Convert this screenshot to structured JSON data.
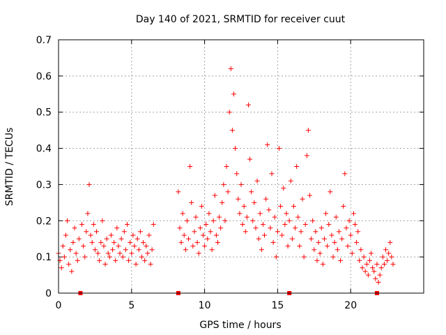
{
  "chart_data": {
    "type": "scatter",
    "title": "Day 140 of 2021, SRMTID for receiver cuut",
    "xlabel": "GPS time / hours",
    "ylabel": "SRMTID / TECUs",
    "xlim": [
      0,
      25
    ],
    "ylim": [
      0,
      0.7
    ],
    "xticks": [
      0,
      5,
      10,
      15,
      20
    ],
    "yticks": [
      0,
      0.1,
      0.2,
      0.3,
      0.4,
      0.5,
      0.6,
      0.7
    ],
    "xtick_labels": [
      "0",
      "5",
      "10",
      "15",
      "20"
    ],
    "ytick_labels": [
      "0",
      "0.1",
      "0.2",
      "0.3",
      "0.4",
      "0.5",
      "0.6",
      "0.7"
    ],
    "grid": true,
    "marker": "+",
    "color": "#ff0000",
    "gap_markers_x": [
      1.5,
      8.2,
      15.8,
      21.8
    ],
    "series": [
      {
        "name": "SRMTID",
        "x": [
          0.0,
          0.1,
          0.2,
          0.3,
          0.4,
          0.5,
          0.6,
          0.7,
          0.8,
          0.9,
          1.0,
          1.1,
          1.2,
          1.3,
          1.4,
          1.6,
          1.7,
          1.8,
          1.9,
          2.0,
          2.1,
          2.2,
          2.3,
          2.4,
          2.5,
          2.6,
          2.7,
          2.8,
          2.9,
          3.0,
          3.1,
          3.2,
          3.3,
          3.4,
          3.5,
          3.6,
          3.7,
          3.8,
          3.9,
          4.0,
          4.1,
          4.2,
          4.3,
          4.4,
          4.5,
          4.6,
          4.7,
          4.8,
          4.9,
          5.0,
          5.1,
          5.2,
          5.3,
          5.4,
          5.5,
          5.6,
          5.7,
          5.8,
          5.9,
          6.0,
          6.1,
          6.2,
          6.3,
          6.4,
          6.5,
          8.2,
          8.3,
          8.4,
          8.5,
          8.6,
          8.7,
          8.8,
          8.9,
          9.0,
          9.1,
          9.2,
          9.3,
          9.4,
          9.5,
          9.6,
          9.7,
          9.8,
          9.9,
          10.0,
          10.1,
          10.2,
          10.3,
          10.4,
          10.5,
          10.6,
          10.7,
          10.8,
          10.9,
          11.0,
          11.1,
          11.2,
          11.3,
          11.4,
          11.5,
          11.6,
          11.7,
          11.8,
          11.9,
          12.0,
          12.1,
          12.2,
          12.3,
          12.4,
          12.5,
          12.6,
          12.7,
          12.8,
          12.9,
          13.0,
          13.1,
          13.2,
          13.3,
          13.4,
          13.5,
          13.6,
          13.7,
          13.8,
          13.9,
          14.0,
          14.1,
          14.2,
          14.3,
          14.4,
          14.5,
          14.6,
          14.7,
          14.8,
          14.9,
          15.0,
          15.1,
          15.2,
          15.3,
          15.4,
          15.5,
          15.6,
          15.7,
          15.8,
          15.9,
          16.0,
          16.1,
          16.2,
          16.3,
          16.4,
          16.5,
          16.6,
          16.7,
          16.8,
          16.9,
          17.0,
          17.1,
          17.2,
          17.3,
          17.4,
          17.5,
          17.6,
          17.7,
          17.8,
          17.9,
          18.0,
          18.1,
          18.2,
          18.3,
          18.4,
          18.5,
          18.6,
          18.7,
          18.8,
          18.9,
          19.0,
          19.1,
          19.2,
          19.3,
          19.4,
          19.5,
          19.6,
          19.7,
          19.8,
          19.9,
          20.0,
          20.1,
          20.2,
          20.3,
          20.4,
          20.5,
          20.6,
          20.7,
          20.8,
          20.9,
          21.0,
          21.1,
          21.2,
          21.3,
          21.4,
          21.5,
          21.6,
          21.7,
          21.8,
          21.9,
          22.0,
          22.1,
          22.2,
          22.3,
          22.4,
          22.5,
          22.6,
          22.7,
          22.8,
          22.9
        ],
        "y": [
          0.11,
          0.09,
          0.07,
          0.13,
          0.1,
          0.16,
          0.2,
          0.08,
          0.12,
          0.06,
          0.14,
          0.18,
          0.11,
          0.09,
          0.15,
          0.19,
          0.13,
          0.1,
          0.17,
          0.22,
          0.3,
          0.16,
          0.14,
          0.19,
          0.12,
          0.17,
          0.11,
          0.09,
          0.14,
          0.2,
          0.13,
          0.08,
          0.15,
          0.11,
          0.1,
          0.16,
          0.12,
          0.14,
          0.09,
          0.18,
          0.13,
          0.11,
          0.15,
          0.1,
          0.17,
          0.12,
          0.19,
          0.09,
          0.14,
          0.11,
          0.16,
          0.13,
          0.08,
          0.15,
          0.12,
          0.17,
          0.1,
          0.14,
          0.09,
          0.13,
          0.11,
          0.16,
          0.08,
          0.12,
          0.19,
          0.28,
          0.18,
          0.14,
          0.22,
          0.16,
          0.12,
          0.2,
          0.15,
          0.35,
          0.25,
          0.13,
          0.17,
          0.21,
          0.14,
          0.11,
          0.18,
          0.24,
          0.16,
          0.13,
          0.19,
          0.15,
          0.22,
          0.17,
          0.12,
          0.2,
          0.27,
          0.16,
          0.14,
          0.21,
          0.18,
          0.25,
          0.3,
          0.2,
          0.35,
          0.28,
          0.5,
          0.62,
          0.45,
          0.55,
          0.4,
          0.33,
          0.26,
          0.22,
          0.3,
          0.19,
          0.24,
          0.17,
          0.21,
          0.52,
          0.37,
          0.28,
          0.2,
          0.25,
          0.18,
          0.31,
          0.15,
          0.22,
          0.12,
          0.19,
          0.16,
          0.26,
          0.41,
          0.23,
          0.18,
          0.33,
          0.14,
          0.21,
          0.1,
          0.17,
          0.4,
          0.24,
          0.16,
          0.29,
          0.19,
          0.22,
          0.13,
          0.2,
          0.31,
          0.15,
          0.24,
          0.18,
          0.35,
          0.21,
          0.13,
          0.17,
          0.26,
          0.1,
          0.19,
          0.38,
          0.45,
          0.27,
          0.15,
          0.2,
          0.12,
          0.17,
          0.09,
          0.14,
          0.11,
          0.18,
          0.08,
          0.15,
          0.22,
          0.13,
          0.19,
          0.28,
          0.16,
          0.1,
          0.14,
          0.21,
          0.12,
          0.17,
          0.09,
          0.15,
          0.24,
          0.33,
          0.18,
          0.13,
          0.2,
          0.16,
          0.11,
          0.22,
          0.19,
          0.14,
          0.17,
          0.09,
          0.12,
          0.07,
          0.1,
          0.06,
          0.08,
          0.05,
          0.09,
          0.11,
          0.07,
          0.06,
          0.04,
          0.08,
          0.03,
          0.05,
          0.07,
          0.1,
          0.08,
          0.12,
          0.09,
          0.11,
          0.14,
          0.1,
          0.08
        ]
      }
    ]
  }
}
